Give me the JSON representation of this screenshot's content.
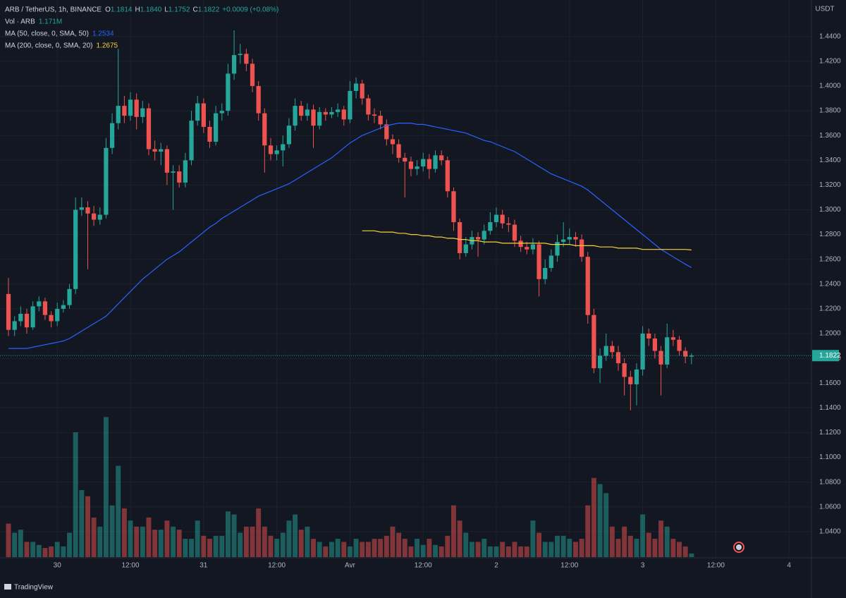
{
  "chart_data": {
    "type": "candlestick",
    "title": "ARB / TetherUS, 1h, BINANCE",
    "ohlc": [
      {
        "key": "O",
        "value": "1.1814"
      },
      {
        "key": "H",
        "value": "1.1840"
      },
      {
        "key": "L",
        "value": "1.1752"
      },
      {
        "key": "C",
        "value": "1.1822"
      }
    ],
    "change": "+0.0009 (+0.08%)",
    "volume_name": "Vol · ARB",
    "volume_label": "1.171M",
    "y_axis_label": "USDT",
    "brand": "TradingView",
    "up_color": "#26a69a",
    "down_color": "#ef5350",
    "open": [
      1.232,
      1.203,
      1.21,
      1.216,
      1.205,
      1.222,
      1.226,
      1.215,
      1.21,
      1.22,
      1.223,
      1.236,
      1.3,
      1.302,
      1.297,
      1.292,
      1.296,
      1.35,
      1.37,
      1.384,
      1.376,
      1.389,
      1.375,
      1.382,
      1.349,
      1.347,
      1.349,
      1.33,
      1.331,
      1.322,
      1.34,
      1.372,
      1.386,
      1.367,
      1.355,
      1.378,
      1.38,
      1.41,
      1.425,
      1.426,
      1.418,
      1.4,
      1.378,
      1.352,
      1.345,
      1.348,
      1.353,
      1.368,
      1.384,
      1.376,
      1.381,
      1.368,
      1.379,
      1.377,
      1.379,
      1.381,
      1.373,
      1.396,
      1.402,
      1.39,
      1.377,
      1.376,
      1.369,
      1.357,
      1.353,
      1.342,
      1.339,
      1.333,
      1.335,
      1.341,
      1.333,
      1.344,
      1.34,
      1.315,
      1.29,
      1.265,
      1.272,
      1.278,
      1.276,
      1.283,
      1.29,
      1.296,
      1.289,
      1.288,
      1.275,
      1.27,
      1.268,
      1.272,
      1.244,
      1.253,
      1.263,
      1.274,
      1.276,
      1.278,
      1.276,
      1.262,
      1.215,
      1.172,
      1.182,
      1.19,
      1.185,
      1.176,
      1.165,
      1.159,
      1.171,
      1.2,
      1.196,
      1.186,
      1.175,
      1.197,
      1.195,
      1.186,
      1.1814
    ],
    "high": [
      1.245,
      1.214,
      1.222,
      1.22,
      1.226,
      1.23,
      1.229,
      1.218,
      1.225,
      1.227,
      1.24,
      1.31,
      1.31,
      1.307,
      1.303,
      1.302,
      1.358,
      1.378,
      1.43,
      1.392,
      1.395,
      1.394,
      1.388,
      1.386,
      1.356,
      1.354,
      1.352,
      1.336,
      1.336,
      1.346,
      1.38,
      1.392,
      1.39,
      1.372,
      1.384,
      1.386,
      1.418,
      1.445,
      1.434,
      1.43,
      1.422,
      1.404,
      1.382,
      1.358,
      1.352,
      1.36,
      1.374,
      1.39,
      1.388,
      1.386,
      1.385,
      1.383,
      1.382,
      1.383,
      1.386,
      1.384,
      1.404,
      1.407,
      1.405,
      1.393,
      1.382,
      1.38,
      1.373,
      1.361,
      1.357,
      1.346,
      1.343,
      1.34,
      1.346,
      1.345,
      1.348,
      1.348,
      1.343,
      1.318,
      1.293,
      1.278,
      1.283,
      1.282,
      1.288,
      1.298,
      1.302,
      1.3,
      1.294,
      1.292,
      1.279,
      1.274,
      1.277,
      1.275,
      1.26,
      1.268,
      1.28,
      1.29,
      1.285,
      1.282,
      1.28,
      1.266,
      1.22,
      1.188,
      1.2,
      1.194,
      1.19,
      1.18,
      1.17,
      1.176,
      1.206,
      1.204,
      1.2,
      1.19,
      1.208,
      1.203,
      1.198,
      1.189,
      1.184
    ],
    "low": [
      1.198,
      1.198,
      1.206,
      1.2,
      1.203,
      1.218,
      1.211,
      1.205,
      1.206,
      1.217,
      1.22,
      1.232,
      1.295,
      1.252,
      1.287,
      1.288,
      1.293,
      1.345,
      1.365,
      1.37,
      1.372,
      1.365,
      1.37,
      1.344,
      1.34,
      1.336,
      1.32,
      1.3,
      1.318,
      1.318,
      1.336,
      1.368,
      1.362,
      1.35,
      1.352,
      1.372,
      1.376,
      1.405,
      1.418,
      1.412,
      1.395,
      1.372,
      1.33,
      1.34,
      1.34,
      1.335,
      1.35,
      1.364,
      1.372,
      1.372,
      1.35,
      1.365,
      1.372,
      1.374,
      1.375,
      1.368,
      1.37,
      1.39,
      1.385,
      1.372,
      1.37,
      1.365,
      1.352,
      1.345,
      1.338,
      1.31,
      1.327,
      1.328,
      1.331,
      1.325,
      1.33,
      1.336,
      1.31,
      1.283,
      1.26,
      1.262,
      1.268,
      1.262,
      1.272,
      1.28,
      1.286,
      1.285,
      1.282,
      1.27,
      1.266,
      1.264,
      1.264,
      1.23,
      1.24,
      1.25,
      1.258,
      1.27,
      1.272,
      1.27,
      1.258,
      1.208,
      1.168,
      1.16,
      1.178,
      1.18,
      1.17,
      1.15,
      1.138,
      1.142,
      1.166,
      1.19,
      1.18,
      1.15,
      1.172,
      1.19,
      1.182,
      1.176,
      1.1752
    ],
    "close": [
      1.203,
      1.21,
      1.216,
      1.205,
      1.222,
      1.226,
      1.215,
      1.21,
      1.22,
      1.223,
      1.236,
      1.3,
      1.302,
      1.297,
      1.292,
      1.296,
      1.35,
      1.37,
      1.384,
      1.376,
      1.389,
      1.375,
      1.382,
      1.349,
      1.347,
      1.349,
      1.33,
      1.331,
      1.322,
      1.34,
      1.372,
      1.386,
      1.367,
      1.355,
      1.378,
      1.38,
      1.41,
      1.425,
      1.426,
      1.418,
      1.4,
      1.378,
      1.352,
      1.345,
      1.348,
      1.353,
      1.368,
      1.384,
      1.376,
      1.381,
      1.368,
      1.379,
      1.377,
      1.379,
      1.381,
      1.373,
      1.396,
      1.402,
      1.39,
      1.377,
      1.376,
      1.369,
      1.357,
      1.353,
      1.342,
      1.339,
      1.333,
      1.335,
      1.341,
      1.333,
      1.344,
      1.34,
      1.315,
      1.29,
      1.265,
      1.272,
      1.278,
      1.276,
      1.283,
      1.29,
      1.296,
      1.289,
      1.288,
      1.275,
      1.27,
      1.268,
      1.272,
      1.244,
      1.253,
      1.263,
      1.274,
      1.276,
      1.278,
      1.276,
      1.262,
      1.215,
      1.172,
      1.182,
      1.19,
      1.185,
      1.176,
      1.165,
      1.159,
      1.171,
      1.2,
      1.196,
      1.186,
      1.175,
      1.197,
      1.195,
      1.186,
      1.1814,
      1.1822
    ],
    "volume": [
      11,
      8,
      9,
      5,
      5,
      4,
      3,
      3.5,
      5,
      3.5,
      8,
      41,
      22,
      20,
      13,
      10,
      46,
      17,
      30,
      16,
      12,
      10,
      10,
      13,
      9,
      9,
      12,
      10,
      9,
      6,
      6,
      12,
      7,
      6,
      7,
      7,
      15,
      14,
      8,
      10,
      10,
      16,
      10,
      7,
      6,
      8,
      12,
      14,
      9,
      10,
      6,
      5,
      3.5,
      5,
      6,
      5,
      3.5,
      6,
      5,
      5,
      6,
      6,
      7,
      10,
      8,
      6,
      3.5,
      6,
      4,
      6,
      4,
      3.5,
      7,
      17,
      12,
      8,
      5,
      5,
      6,
      3.5,
      3.5,
      5,
      3.5,
      5,
      3.5,
      3.5,
      12,
      8,
      5,
      5,
      7,
      7,
      6,
      5,
      6,
      17,
      26,
      24,
      21,
      10,
      6,
      10,
      7,
      6,
      14,
      8,
      6,
      12,
      10,
      6,
      5,
      3.5,
      1.171
    ],
    "series": [
      {
        "name": "MA (50, close, 0, SMA, 50)",
        "color": "#2962ff",
        "value_label": "1.2534",
        "values": [
          1.188,
          1.188,
          1.188,
          1.188,
          1.189,
          1.19,
          1.191,
          1.192,
          1.193,
          1.194,
          1.196,
          1.199,
          1.202,
          1.205,
          1.208,
          1.211,
          1.214,
          1.219,
          1.224,
          1.229,
          1.234,
          1.239,
          1.244,
          1.248,
          1.252,
          1.256,
          1.26,
          1.263,
          1.266,
          1.27,
          1.274,
          1.278,
          1.282,
          1.286,
          1.289,
          1.293,
          1.296,
          1.299,
          1.302,
          1.305,
          1.308,
          1.311,
          1.313,
          1.315,
          1.317,
          1.319,
          1.321,
          1.324,
          1.327,
          1.33,
          1.333,
          1.336,
          1.339,
          1.342,
          1.346,
          1.35,
          1.354,
          1.357,
          1.36,
          1.362,
          1.364,
          1.366,
          1.368,
          1.369,
          1.37,
          1.37,
          1.37,
          1.369,
          1.369,
          1.368,
          1.367,
          1.366,
          1.365,
          1.364,
          1.363,
          1.362,
          1.36,
          1.358,
          1.356,
          1.355,
          1.353,
          1.351,
          1.349,
          1.347,
          1.344,
          1.341,
          1.338,
          1.335,
          1.332,
          1.329,
          1.327,
          1.325,
          1.323,
          1.321,
          1.319,
          1.316,
          1.312,
          1.308,
          1.304,
          1.3,
          1.296,
          1.292,
          1.288,
          1.284,
          1.28,
          1.276,
          1.272,
          1.268,
          1.265,
          1.262,
          1.259,
          1.256,
          1.2534
        ]
      },
      {
        "name": "MA (200, close, 0, SMA, 20)",
        "color": "#f5d23b",
        "value_label": "1.2675",
        "values": [
          null,
          null,
          null,
          null,
          null,
          null,
          null,
          null,
          null,
          null,
          null,
          null,
          null,
          null,
          null,
          null,
          null,
          null,
          null,
          null,
          null,
          null,
          null,
          null,
          null,
          null,
          null,
          null,
          null,
          null,
          null,
          null,
          null,
          null,
          null,
          null,
          null,
          null,
          null,
          null,
          null,
          null,
          null,
          null,
          null,
          null,
          null,
          null,
          null,
          null,
          null,
          null,
          null,
          null,
          null,
          null,
          null,
          null,
          1.283,
          1.283,
          1.283,
          1.282,
          1.282,
          1.282,
          1.281,
          1.281,
          1.28,
          1.28,
          1.279,
          1.279,
          1.278,
          1.278,
          1.277,
          1.277,
          1.276,
          1.276,
          1.275,
          1.275,
          1.274,
          1.274,
          1.274,
          1.273,
          1.273,
          1.273,
          1.273,
          1.273,
          1.273,
          1.273,
          1.273,
          1.272,
          1.272,
          1.272,
          1.272,
          1.271,
          1.271,
          1.271,
          1.271,
          1.27,
          1.27,
          1.27,
          1.269,
          1.269,
          1.269,
          1.269,
          1.268,
          1.268,
          1.268,
          1.268,
          1.268,
          1.268,
          1.268,
          1.268,
          1.2675
        ]
      }
    ],
    "xlim": [
      -1.39,
      131.56
    ],
    "xticks": [
      {
        "value": 8,
        "label": "30"
      },
      {
        "value": 20,
        "label": "12:00"
      },
      {
        "value": 32,
        "label": "31"
      },
      {
        "value": 44,
        "label": "12:00"
      },
      {
        "value": 56,
        "label": "Avr"
      },
      {
        "value": 68,
        "label": "12:00"
      },
      {
        "value": 80,
        "label": "2"
      },
      {
        "value": 92,
        "label": "12:00"
      },
      {
        "value": 104,
        "label": "3"
      },
      {
        "value": 116,
        "label": "12:00"
      },
      {
        "value": 128,
        "label": "4"
      }
    ],
    "ylim": [
      1.0194,
      1.4695
    ],
    "yticks": [
      {
        "value": 1.44,
        "label": "1.4400"
      },
      {
        "value": 1.42,
        "label": "1.4200"
      },
      {
        "value": 1.4,
        "label": "1.4000"
      },
      {
        "value": 1.38,
        "label": "1.3800"
      },
      {
        "value": 1.36,
        "label": "1.3600"
      },
      {
        "value": 1.34,
        "label": "1.3400"
      },
      {
        "value": 1.32,
        "label": "1.3200"
      },
      {
        "value": 1.3,
        "label": "1.3000"
      },
      {
        "value": 1.28,
        "label": "1.2800"
      },
      {
        "value": 1.26,
        "label": "1.2600"
      },
      {
        "value": 1.24,
        "label": "1.2400"
      },
      {
        "value": 1.22,
        "label": "1.2200"
      },
      {
        "value": 1.2,
        "label": "1.2000"
      },
      {
        "value": 1.18,
        "label": "1.1800"
      },
      {
        "value": 1.16,
        "label": "1.1600"
      },
      {
        "value": 1.14,
        "label": "1.1400"
      },
      {
        "value": 1.12,
        "label": "1.1200"
      },
      {
        "value": 1.1,
        "label": "1.1000"
      },
      {
        "value": 1.08,
        "label": "1.0800"
      },
      {
        "value": 1.06,
        "label": "1.0600"
      },
      {
        "value": 1.04,
        "label": "1.0400"
      }
    ],
    "volume_ylim": [
      0,
      183
    ],
    "grid": true
  }
}
